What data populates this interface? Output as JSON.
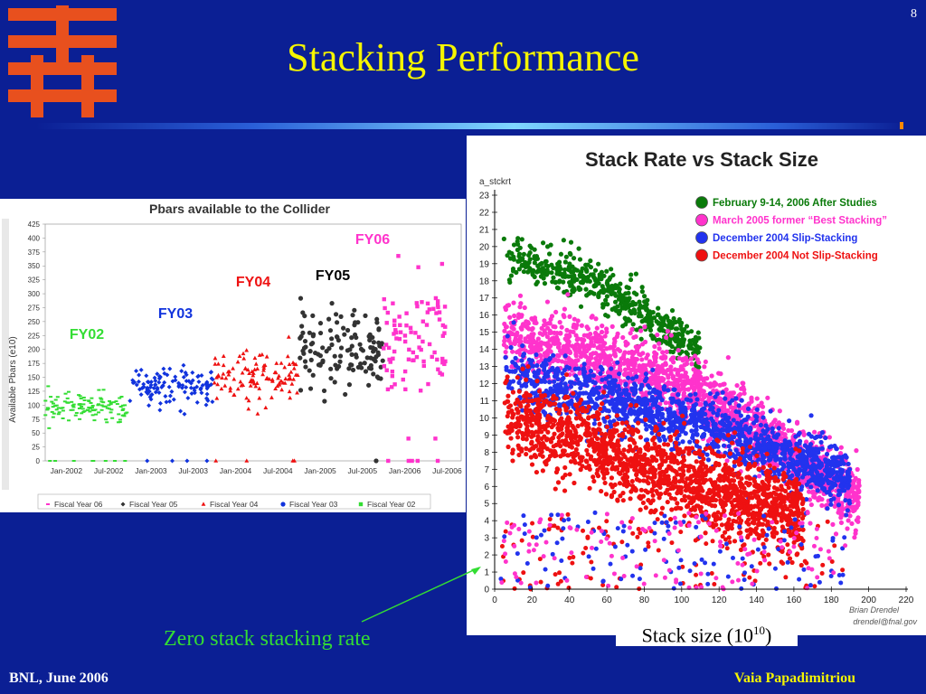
{
  "slide": {
    "title": "Stacking Performance",
    "page_number": "8",
    "footer_left": "BNL, June 2006",
    "footer_right": "Vaia Papadimitriou",
    "stack_size_label_prefix": "Stack size (10",
    "stack_size_label_exp": "10",
    "stack_size_label_suffix": ")",
    "zero_stack_label": "Zero stack stacking rate"
  },
  "colors": {
    "background": "#0b1f94",
    "title": "#f5f500",
    "logo": "#e8501e",
    "fy06": "#ff33cc",
    "fy05": "#333333",
    "fy04": "#ee1111",
    "fy03": "#1133dd",
    "fy02": "#33dd33",
    "after_studies": "#0a7a0a",
    "best_stacking": "#ff33cc",
    "slip_stacking": "#2233ee",
    "not_slip": "#ee1111"
  },
  "chart_data": [
    {
      "type": "scatter",
      "title": "Pbars available to the Collider",
      "ylabel": "Available Pbars (e10)",
      "xlabel": "",
      "x_ticks": [
        "Jan-2002",
        "Jul-2002",
        "Jan-2003",
        "Jul-2003",
        "Jan-2004",
        "Jul-2004",
        "Jan-2005",
        "Jul-2005",
        "Jan-2006",
        "Jul-2006"
      ],
      "y_ticks": [
        0,
        25,
        50,
        75,
        100,
        125,
        150,
        175,
        200,
        225,
        250,
        275,
        300,
        325,
        350,
        375,
        400,
        425
      ],
      "xlim": [
        "2001-10",
        "2006-09"
      ],
      "ylim": [
        0,
        425
      ],
      "annotations": [
        "FY06",
        "FY05",
        "FY04",
        "FY03",
        "FY02"
      ],
      "legend": [
        "Fiscal Year 06",
        "Fiscal Year 05",
        "Fiscal Year 04",
        "Fiscal Year 03",
        "Fiscal Year 02"
      ],
      "legend_position": "bottom",
      "series": [
        {
          "name": "Fiscal Year 02",
          "x_range": [
            "2001-10",
            "2002-09"
          ],
          "y_center": 95,
          "y_spread": 25,
          "count": 120,
          "zeros": 8
        },
        {
          "name": "Fiscal Year 03",
          "x_range": [
            "2002-10",
            "2003-09"
          ],
          "y_center": 135,
          "y_spread": 30,
          "count": 120,
          "zeros": 4
        },
        {
          "name": "Fiscal Year 04",
          "x_range": [
            "2003-10",
            "2004-09"
          ],
          "y_center": 155,
          "y_spread": 45,
          "count": 110,
          "zeros": 4
        },
        {
          "name": "Fiscal Year 05",
          "x_range": [
            "2004-10",
            "2005-09"
          ],
          "y_center": 200,
          "y_spread": 70,
          "count": 130,
          "zeros": 1
        },
        {
          "name": "Fiscal Year 06",
          "x_range": [
            "2005-10",
            "2006-06"
          ],
          "y_center": 220,
          "y_spread": 110,
          "count": 90,
          "zeros": 5
        }
      ]
    },
    {
      "type": "scatter",
      "title": "Stack Rate vs Stack Size",
      "ylabel": "a_stckrt",
      "xlabel": "",
      "x_ticks": [
        0,
        20,
        40,
        60,
        80,
        100,
        120,
        140,
        160,
        180,
        200,
        220
      ],
      "y_ticks": [
        0,
        1,
        2,
        3,
        4,
        5,
        6,
        7,
        8,
        9,
        10,
        11,
        12,
        13,
        14,
        15,
        16,
        17,
        18,
        19,
        20,
        21,
        22,
        23
      ],
      "xlim": [
        0,
        220
      ],
      "ylim": [
        0,
        23
      ],
      "legend": [
        "February 9-14, 2006 After Studies",
        "March 2005 former “Best Stacking”",
        "December 2004 Slip-Stacking",
        "December 2004 Not Slip-Stacking"
      ],
      "legend_position": "top-right",
      "credit": [
        "Brian Drendel",
        "drendel@fnal.gov"
      ],
      "series": [
        {
          "name": "December 2004 Not Slip-Stacking",
          "band": [
            [
              5,
              10.2
            ],
            [
              100,
              6.5
            ],
            [
              160,
              4.5
            ]
          ],
          "spread": 2.2,
          "x_range": [
            5,
            165
          ],
          "count": 1600
        },
        {
          "name": "December 2004 Slip-Stacking",
          "band": [
            [
              5,
              12.5
            ],
            [
              100,
              10.0
            ],
            [
              190,
              6.5
            ]
          ],
          "spread": 1.6,
          "x_range": [
            5,
            190
          ],
          "count": 1400
        },
        {
          "name": "March 2005 former “Best Stacking”",
          "band": [
            [
              5,
              15.0
            ],
            [
              100,
              12.0
            ],
            [
              195,
              5.2
            ]
          ],
          "spread": 1.8,
          "x_range": [
            5,
            195
          ],
          "count": 1800
        },
        {
          "name": "February 9-14, 2006 After Studies",
          "band": [
            [
              5,
              19.5
            ],
            [
              50,
              18.0
            ],
            [
              110,
              14.0
            ]
          ],
          "spread": 1.2,
          "x_range": [
            5,
            110
          ],
          "count": 500
        }
      ]
    }
  ]
}
